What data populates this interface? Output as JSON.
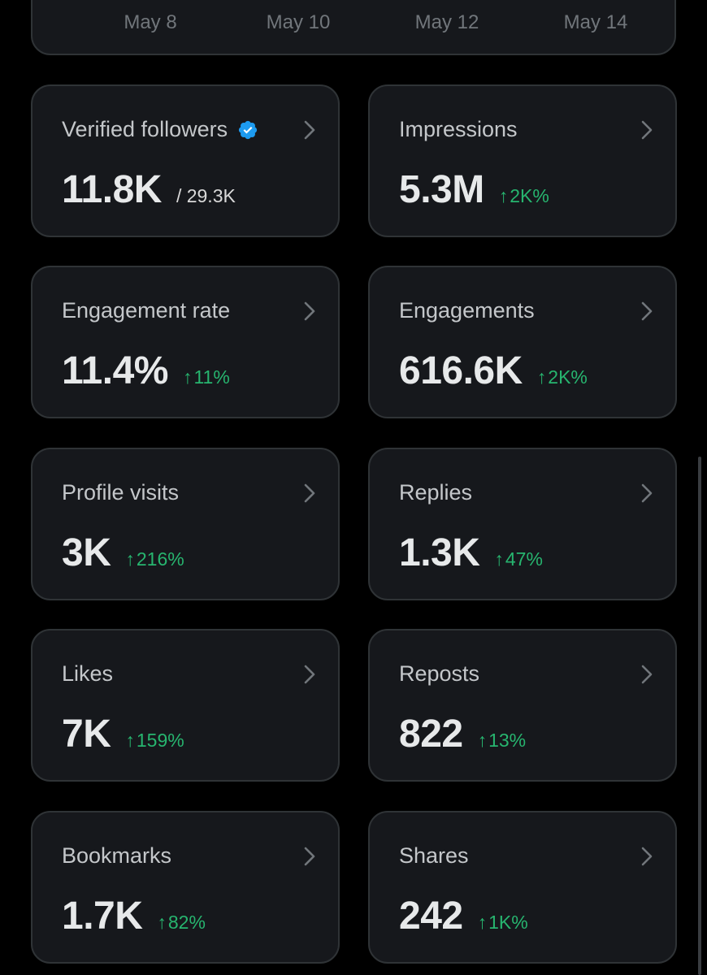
{
  "chart": {
    "x_ticks": [
      "May 8",
      "May 10",
      "May 12",
      "May 14"
    ]
  },
  "metrics": [
    {
      "title": "Verified followers",
      "value": "11.8K",
      "sub": "/ 29.3K",
      "verified": true,
      "delta": ""
    },
    {
      "title": "Impressions",
      "value": "5.3M",
      "sub": "",
      "delta": "2K%"
    },
    {
      "title": "Engagement rate",
      "value": "11.4%",
      "sub": "",
      "delta": "11%"
    },
    {
      "title": "Engagements",
      "value": "616.6K",
      "sub": "",
      "delta": "2K%"
    },
    {
      "title": "Profile visits",
      "value": "3K",
      "sub": "",
      "delta": "216%"
    },
    {
      "title": "Replies",
      "value": "1.3K",
      "sub": "",
      "delta": "47%"
    },
    {
      "title": "Likes",
      "value": "7K",
      "sub": "",
      "delta": "159%"
    },
    {
      "title": "Reposts",
      "value": "822",
      "sub": "",
      "delta": "13%"
    },
    {
      "title": "Bookmarks",
      "value": "1.7K",
      "sub": "",
      "delta": "82%"
    },
    {
      "title": "Shares",
      "value": "242",
      "sub": "",
      "delta": "1K%"
    }
  ],
  "icons": {
    "up_arrow": "↑",
    "verified_badge": "verified-badge-icon",
    "chevron": "chevron-right-icon"
  },
  "colors": {
    "background": "#000000",
    "card": "#16181c",
    "border": "#2f3336",
    "positive": "#27b56f",
    "verified": "#1d9bf0"
  }
}
